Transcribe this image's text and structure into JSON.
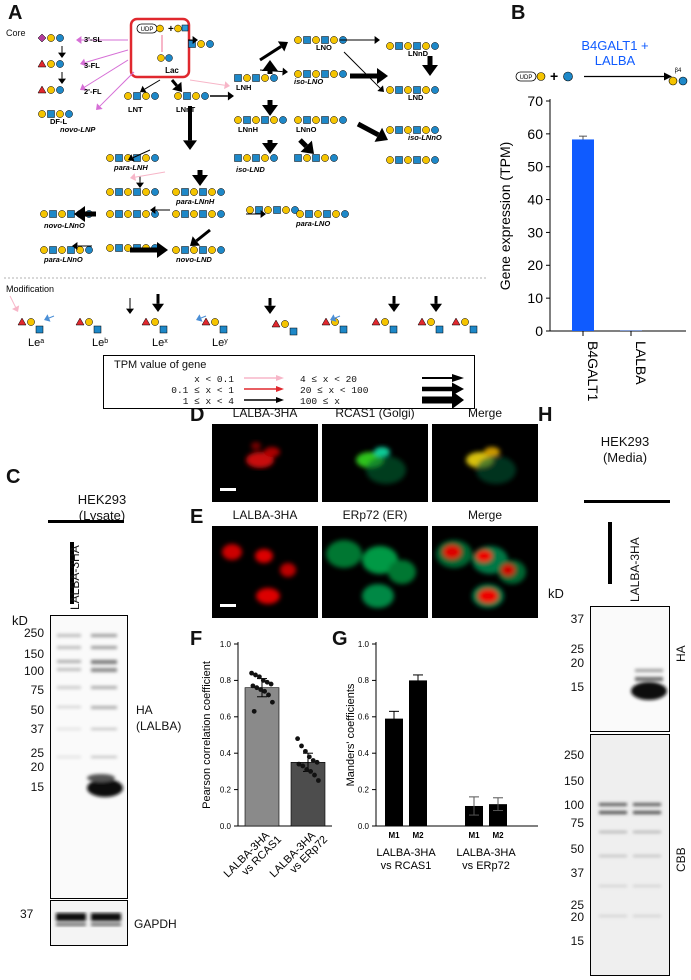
{
  "panels": {
    "A": "A",
    "B": "B",
    "C": "C",
    "D": "D",
    "E": "E",
    "F": "F",
    "G": "G",
    "H": "H"
  },
  "panelA": {
    "core_label": "Core",
    "modification_label": "Modification",
    "udp_label": "UDP",
    "lac_label": "Lac",
    "structures": [
      "3'-SL",
      "3-FL",
      "2'-FL",
      "DF-L",
      "novo-LNP",
      "LNT",
      "LNnT",
      "LNH",
      "LNO",
      "iso-LNO",
      "LNnD",
      "LND",
      "LNnH",
      "LNnO",
      "iso-LNnO",
      "iso-LND",
      "para-LNH",
      "para-LNnH",
      "novo-LNnO",
      "para-LNO",
      "para-LNnO",
      "novo-LND"
    ],
    "lewis": [
      "Le",
      "Le",
      "Le",
      "Le"
    ],
    "lewis_sup": [
      "a",
      "b",
      "x",
      "y"
    ],
    "legend": {
      "title": "TPM value of gene",
      "rows": [
        {
          "left": "x < 0.1",
          "right": "4 ≤ x < 20"
        },
        {
          "left": "0.1 ≤ x < 1",
          "right": "20 ≤ x < 100"
        },
        {
          "left": "1 ≤ x < 4",
          "right": "100 ≤ x"
        }
      ],
      "colors": [
        "#f7b6c8",
        "#e0282e",
        "#000000"
      ]
    }
  },
  "panelB": {
    "title": "B4GALT1 +\nLALBA",
    "udp_label": "UDP",
    "linkage": "β4",
    "accent": "#0f5bff"
  },
  "chart_data": [
    {
      "type": "bar",
      "panel": "B",
      "categories": [
        "B4GALT1",
        "LALBA"
      ],
      "values": [
        58.3,
        0.1
      ],
      "errors": [
        1.0,
        0
      ],
      "ylabel": "Gene expression (TPM)",
      "ylim": [
        0,
        70
      ],
      "yticks": [
        "0",
        "10",
        "20",
        "30",
        "40",
        "50",
        "60",
        "70"
      ],
      "color": "#0f5bff"
    },
    {
      "type": "bar",
      "panel": "F",
      "categories": [
        "LALBA-3HA vs RCAS1",
        "LALBA-3HA vs ERp72"
      ],
      "values": [
        0.76,
        0.35
      ],
      "errors": [
        0.05,
        0.05
      ],
      "points": [
        [
          0.84,
          0.83,
          0.82,
          0.8,
          0.79,
          0.78,
          0.77,
          0.76,
          0.75,
          0.74,
          0.72,
          0.68,
          0.63
        ],
        [
          0.48,
          0.44,
          0.41,
          0.38,
          0.36,
          0.35,
          0.34,
          0.33,
          0.31,
          0.3,
          0.28,
          0.25
        ]
      ],
      "ylabel": "Pearson correlation coefficient",
      "ylim": [
        0,
        1.0
      ],
      "yticks": [
        "0.0",
        "0.2",
        "0.4",
        "0.6",
        "0.8",
        "1.0"
      ],
      "colors": [
        "#8a8a8a",
        "#4d4d4d"
      ]
    },
    {
      "type": "bar",
      "panel": "G",
      "categories": [
        "M1",
        "M2",
        "M1",
        "M2"
      ],
      "groups": [
        "LALBA-3HA\nvs RCAS1",
        "LALBA-3HA\nvs ERp72"
      ],
      "values": [
        0.59,
        0.8,
        0.11,
        0.12
      ],
      "errors": [
        0.04,
        0.03,
        0.05,
        0.035
      ],
      "ylabel": "Manders' coefficients",
      "ylim": [
        0,
        1.0
      ],
      "yticks": [
        "0.0",
        "0.2",
        "0.4",
        "0.6",
        "0.8",
        "1.0"
      ],
      "color": "#000000"
    }
  ],
  "panelC": {
    "title": "HEK293\n(Lysate)",
    "lane_label": "LALBA-3HA",
    "kd_label": "kD",
    "markers": [
      "250",
      "150",
      "100",
      "75",
      "50",
      "37",
      "25",
      "20",
      "15"
    ],
    "ha_label": "HA\n(LALBA)",
    "gapdh_marker": "37",
    "gapdh_label": "GAPDH"
  },
  "panelD": {
    "labels": [
      "LALBA-3HA",
      "RCAS1 (Golgi)",
      "Merge"
    ]
  },
  "panelE": {
    "labels": [
      "LALBA-3HA",
      "ERp72 (ER)",
      "Merge"
    ]
  },
  "panelH": {
    "title": "HEK293\n(Media)",
    "lane_label": "LALBA-3HA",
    "kd_label": "kD",
    "ha_markers": [
      "37",
      "25",
      "20",
      "15"
    ],
    "ha_label": "HA",
    "cbb_markers": [
      "250",
      "150",
      "100",
      "75",
      "50",
      "37",
      "25",
      "20",
      "15"
    ],
    "cbb_label": "CBB"
  }
}
